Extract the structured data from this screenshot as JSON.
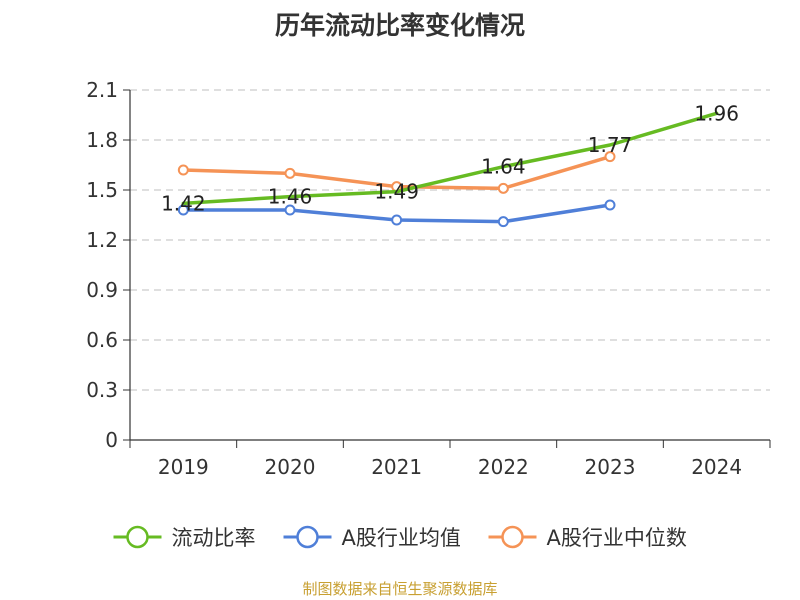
{
  "chart_data": {
    "type": "line",
    "title": "历年流动比率变化情况",
    "source": "制图数据来自恒生聚源数据库",
    "categories": [
      "2019",
      "2020",
      "2021",
      "2022",
      "2023",
      "2024"
    ],
    "ylim": [
      0,
      2.1
    ],
    "yticks": [
      "0",
      "0.3",
      "0.6",
      "0.9",
      "1.2",
      "1.5",
      "1.8",
      "2.1"
    ],
    "grid": true,
    "legend_position": "bottom",
    "series": [
      {
        "name": "流动比率",
        "color": "#66bb22",
        "values": [
          1.42,
          1.46,
          1.49,
          1.64,
          1.77,
          1.96
        ],
        "labels": [
          "1.42",
          "1.46",
          "1.49",
          "1.64",
          "1.77",
          "1.96"
        ]
      },
      {
        "name": "A股行业均值",
        "color": "#4f7fd8",
        "values": [
          1.38,
          1.38,
          1.32,
          1.31,
          1.41,
          null
        ]
      },
      {
        "name": "A股行业中位数",
        "color": "#f59356",
        "values": [
          1.62,
          1.6,
          1.52,
          1.51,
          1.7,
          null
        ]
      }
    ]
  }
}
